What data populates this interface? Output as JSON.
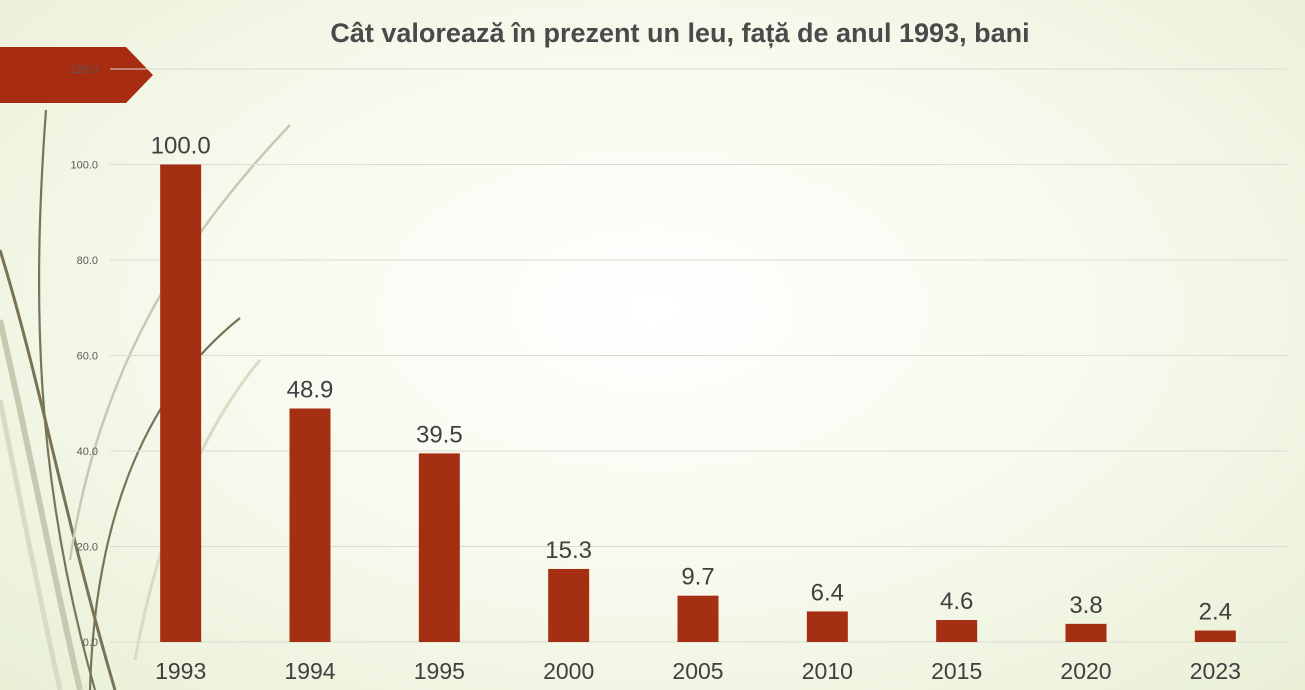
{
  "slide": {
    "decoration": {
      "arrow_color": "#a72c12",
      "stem_colors": [
        "#7a7456",
        "#c9c9b2",
        "#d8dcc4"
      ]
    }
  },
  "chart_data": {
    "type": "bar",
    "title": "Cât valorează în prezent un leu, față de anul 1993, bani",
    "xlabel": "",
    "ylabel": "",
    "categories": [
      "1993",
      "1994",
      "1995",
      "2000",
      "2005",
      "2010",
      "2015",
      "2020",
      "2023"
    ],
    "values": [
      100.0,
      48.9,
      39.5,
      15.3,
      9.7,
      6.4,
      4.6,
      3.8,
      2.4
    ],
    "data_labels": [
      "100.0",
      "48.9",
      "39.5",
      "15.3",
      "9.7",
      "6.4",
      "4.6",
      "3.8",
      "2.4"
    ],
    "ylim": [
      0,
      120
    ],
    "y_ticks": [
      "0.0",
      "20.0",
      "40.0",
      "60.0",
      "80.0",
      "100.0",
      "120.0"
    ],
    "grid": true,
    "legend": "none",
    "bar_color": "#a52f13",
    "grid_color": "#d9dcd0",
    "text_color": "#404040"
  }
}
